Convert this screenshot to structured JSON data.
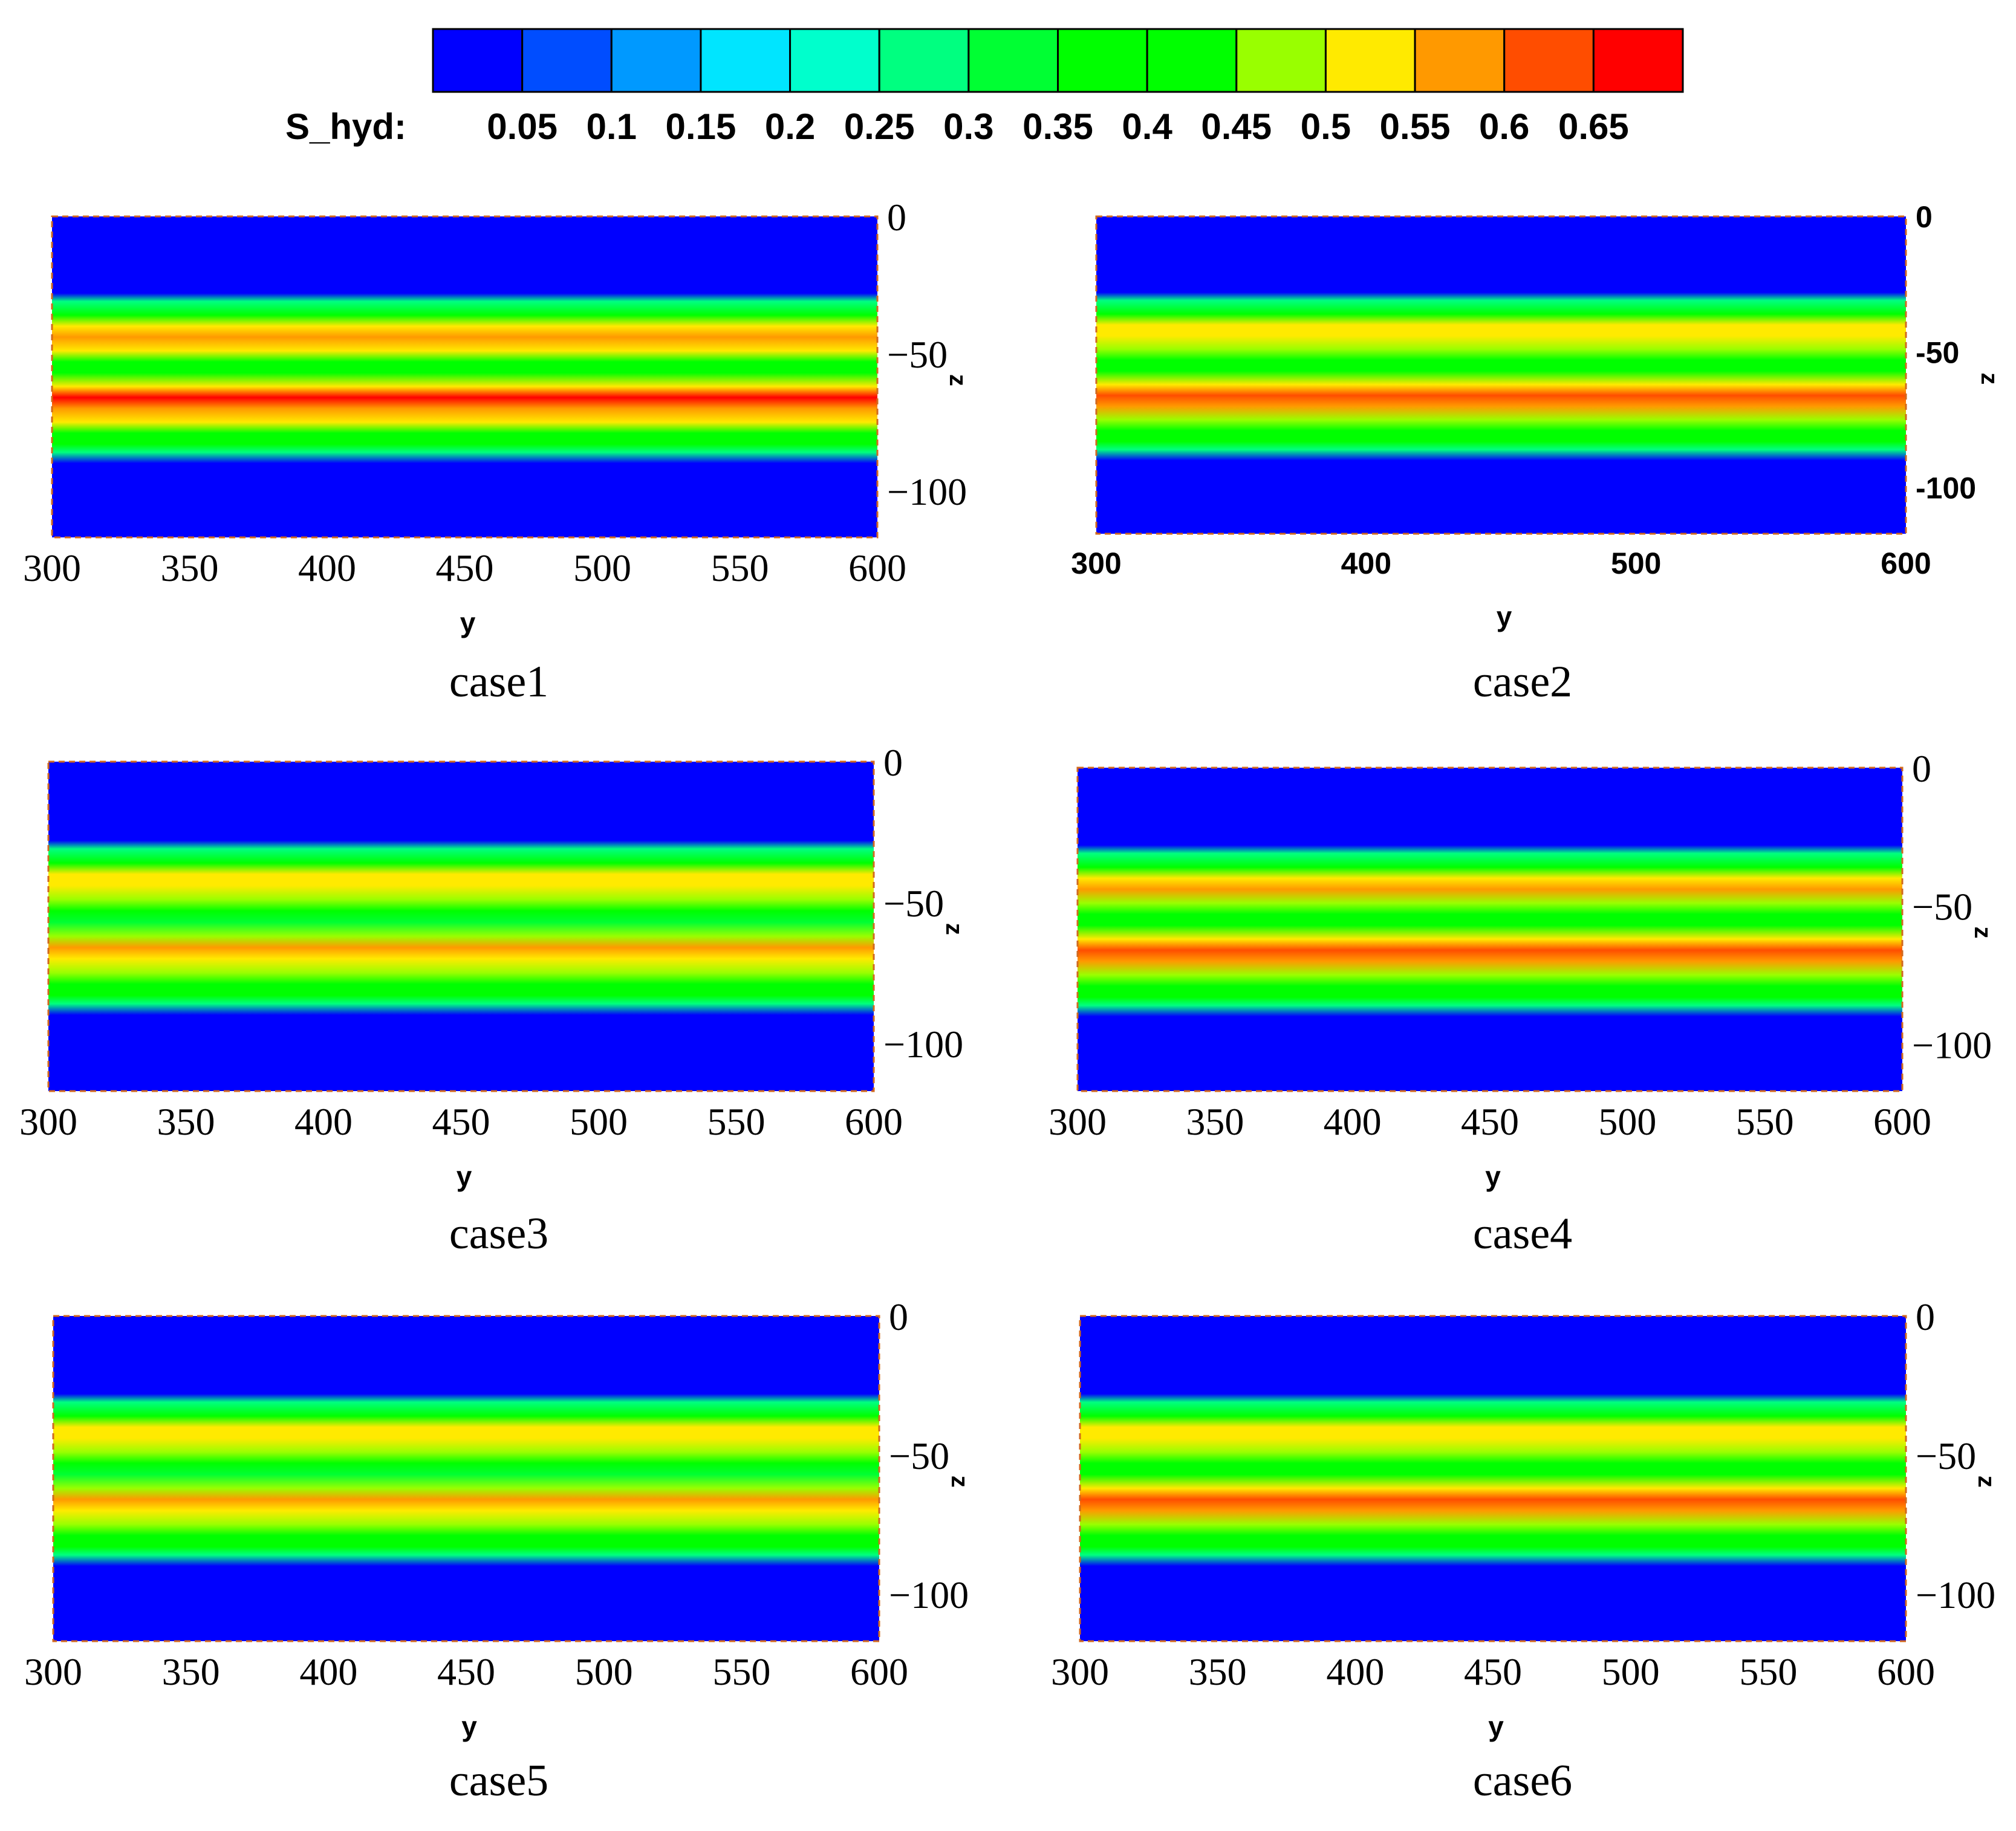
{
  "legend": {
    "label": "S_hyd:",
    "levels": [
      "0.05",
      "0.1",
      "0.15",
      "0.2",
      "0.25",
      "0.3",
      "0.35",
      "0.4",
      "0.45",
      "0.5",
      "0.55",
      "0.6",
      "0.65"
    ],
    "colors": [
      "#0000ff",
      "#004dff",
      "#0099ff",
      "#00e5ff",
      "#00ffcc",
      "#00ff80",
      "#00ff33",
      "#00ff00",
      "#00ff00",
      "#99ff00",
      "#ffea00",
      "#ff9900",
      "#ff4d00",
      "#ff0000"
    ]
  },
  "chart_data": [
    {
      "type": "heatmap",
      "title": "case1",
      "xlabel": "y",
      "ylabel": "z",
      "xlim": [
        300,
        600
      ],
      "ylim": [
        -117,
        0
      ],
      "xticks": [
        "300",
        "350",
        "400",
        "450",
        "500",
        "550",
        "600"
      ],
      "yticks": [
        "0",
        "-50",
        "-100"
      ],
      "profile_z": [
        0,
        -28,
        -31,
        -36,
        -40,
        -44,
        -49,
        -53,
        -57,
        -62,
        -66,
        -70,
        -75,
        -79,
        -83,
        -86,
        -90,
        -117
      ],
      "profile_s": [
        0.03,
        0.03,
        0.25,
        0.42,
        0.52,
        0.58,
        0.5,
        0.42,
        0.4,
        0.52,
        0.66,
        0.58,
        0.5,
        0.42,
        0.4,
        0.25,
        0.03,
        0.03
      ]
    },
    {
      "type": "heatmap",
      "title": "case2",
      "xlabel": "y",
      "ylabel": "z",
      "xlim": [
        300,
        600
      ],
      "ylim": [
        -117,
        0
      ],
      "xticks": [
        "300",
        "400",
        "500",
        "600"
      ],
      "yticks": [
        "0",
        "-50",
        "-100"
      ],
      "profile_z": [
        0,
        -28,
        -31,
        -36,
        -40,
        -44,
        -49,
        -53,
        -57,
        -62,
        -66,
        -70,
        -75,
        -79,
        -83,
        -86,
        -90,
        -117
      ],
      "profile_s": [
        0.03,
        0.03,
        0.25,
        0.42,
        0.5,
        0.52,
        0.45,
        0.38,
        0.35,
        0.5,
        0.6,
        0.55,
        0.48,
        0.42,
        0.38,
        0.25,
        0.03,
        0.03
      ]
    },
    {
      "type": "heatmap",
      "title": "case3",
      "xlabel": "y",
      "ylabel": "z",
      "xlim": [
        300,
        600
      ],
      "ylim": [
        -117,
        0
      ],
      "xticks": [
        "300",
        "350",
        "400",
        "450",
        "500",
        "550",
        "600"
      ],
      "yticks": [
        "0",
        "-50",
        "-100"
      ],
      "profile_z": [
        0,
        -28,
        -31,
        -36,
        -40,
        -44,
        -49,
        -53,
        -57,
        -62,
        -66,
        -70,
        -75,
        -79,
        -83,
        -86,
        -90,
        -117
      ],
      "profile_s": [
        0.03,
        0.03,
        0.25,
        0.42,
        0.5,
        0.52,
        0.45,
        0.38,
        0.32,
        0.48,
        0.56,
        0.52,
        0.45,
        0.42,
        0.38,
        0.25,
        0.03,
        0.03
      ]
    },
    {
      "type": "heatmap",
      "title": "case4",
      "xlabel": "y",
      "ylabel": "z",
      "xlim": [
        300,
        600
      ],
      "ylim": [
        -117,
        0
      ],
      "xticks": [
        "300",
        "350",
        "400",
        "450",
        "500",
        "550",
        "600"
      ],
      "yticks": [
        "0",
        "-50",
        "-100"
      ],
      "profile_z": [
        0,
        -28,
        -31,
        -36,
        -40,
        -44,
        -49,
        -53,
        -57,
        -62,
        -66,
        -70,
        -75,
        -79,
        -83,
        -86,
        -90,
        -117
      ],
      "profile_s": [
        0.03,
        0.03,
        0.25,
        0.42,
        0.52,
        0.57,
        0.48,
        0.4,
        0.38,
        0.52,
        0.63,
        0.56,
        0.48,
        0.42,
        0.38,
        0.25,
        0.03,
        0.03
      ]
    },
    {
      "type": "heatmap",
      "title": "case5",
      "xlabel": "y",
      "ylabel": "z",
      "xlim": [
        300,
        600
      ],
      "ylim": [
        -117,
        0
      ],
      "xticks": [
        "300",
        "350",
        "400",
        "450",
        "500",
        "550",
        "600"
      ],
      "yticks": [
        "0",
        "-50",
        "-100"
      ],
      "profile_z": [
        0,
        -28,
        -31,
        -36,
        -40,
        -44,
        -49,
        -53,
        -57,
        -62,
        -66,
        -70,
        -75,
        -79,
        -83,
        -86,
        -90,
        -117
      ],
      "profile_s": [
        0.03,
        0.03,
        0.25,
        0.42,
        0.5,
        0.52,
        0.45,
        0.38,
        0.32,
        0.48,
        0.56,
        0.52,
        0.45,
        0.42,
        0.38,
        0.25,
        0.03,
        0.03
      ]
    },
    {
      "type": "heatmap",
      "title": "case6",
      "xlabel": "y",
      "ylabel": "z",
      "xlim": [
        300,
        600
      ],
      "ylim": [
        -117,
        0
      ],
      "xticks": [
        "300",
        "350",
        "400",
        "450",
        "500",
        "550",
        "600"
      ],
      "yticks": [
        "0",
        "-50",
        "-100"
      ],
      "profile_z": [
        0,
        -28,
        -31,
        -36,
        -40,
        -44,
        -49,
        -53,
        -57,
        -62,
        -66,
        -70,
        -75,
        -79,
        -83,
        -86,
        -90,
        -117
      ],
      "profile_s": [
        0.03,
        0.03,
        0.25,
        0.42,
        0.5,
        0.54,
        0.46,
        0.4,
        0.36,
        0.5,
        0.6,
        0.55,
        0.47,
        0.42,
        0.38,
        0.25,
        0.03,
        0.03
      ]
    }
  ]
}
